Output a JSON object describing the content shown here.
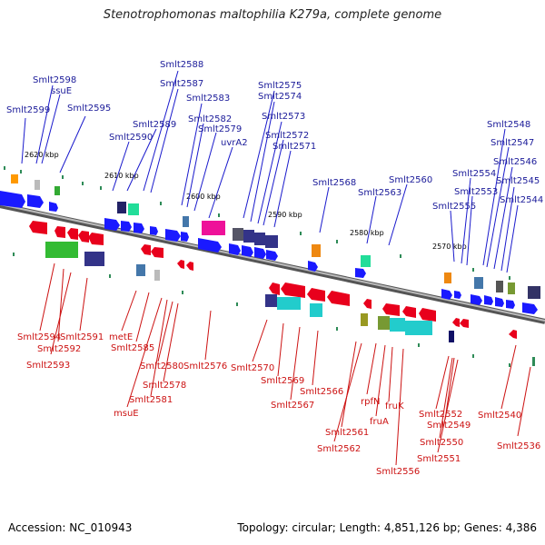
{
  "title": "Stenotrophomonas maltophilia K279a, complete genome",
  "footer": {
    "accession": "Accession: NC_010943",
    "summary": "Topology: circular; Length: 4,851,126 bp; Genes: 4,386"
  },
  "ticks": [
    "2620 kbp",
    "2610 kbp",
    "2600 kbp",
    "2590 kbp",
    "2580 kbp",
    "2570 kbp"
  ],
  "labels_top": [
    "Smlt2598",
    "ssuE",
    "Smlt2599",
    "Smlt2595",
    "Smlt2588",
    "Smlt2587",
    "Smlt2583",
    "Smlt2589",
    "Smlt2590",
    "Smlt2582",
    "Smlt2579",
    "uvrA2",
    "Smlt2575",
    "Smlt2574",
    "Smlt2573",
    "Smlt2572",
    "Smlt2571",
    "Smlt2568",
    "Smlt2560",
    "Smlt2563",
    "Smlt2548",
    "Smlt2547",
    "Smlt2546",
    "Smlt2554",
    "Smlt2545",
    "Smlt2553",
    "Smlt2544",
    "Smlt2555"
  ],
  "labels_bottom": [
    "Smlt2594",
    "Smlt2591",
    "Smlt2592",
    "Smlt2593",
    "metE",
    "Smlt2585",
    "Smlt2580",
    "Smlt2576",
    "Smlt2578",
    "Smlt2581",
    "msuE",
    "Smlt2570",
    "Smlt2569",
    "Smlt2567",
    "Smlt2566",
    "rpfN",
    "fruK",
    "fruA",
    "Smlt2561",
    "Smlt2562",
    "Smlt2556",
    "Smlt2552",
    "Smlt2549",
    "Smlt2550",
    "Smlt2551",
    "Smlt2540",
    "Smlt2536"
  ],
  "colors": {
    "forward": "#1a1aff",
    "reverse": "#e8001c",
    "backbone": "#888888",
    "rna": "#2e8b57",
    "top_label": "#1a1a99",
    "bottom_label": "#cc1111"
  }
}
